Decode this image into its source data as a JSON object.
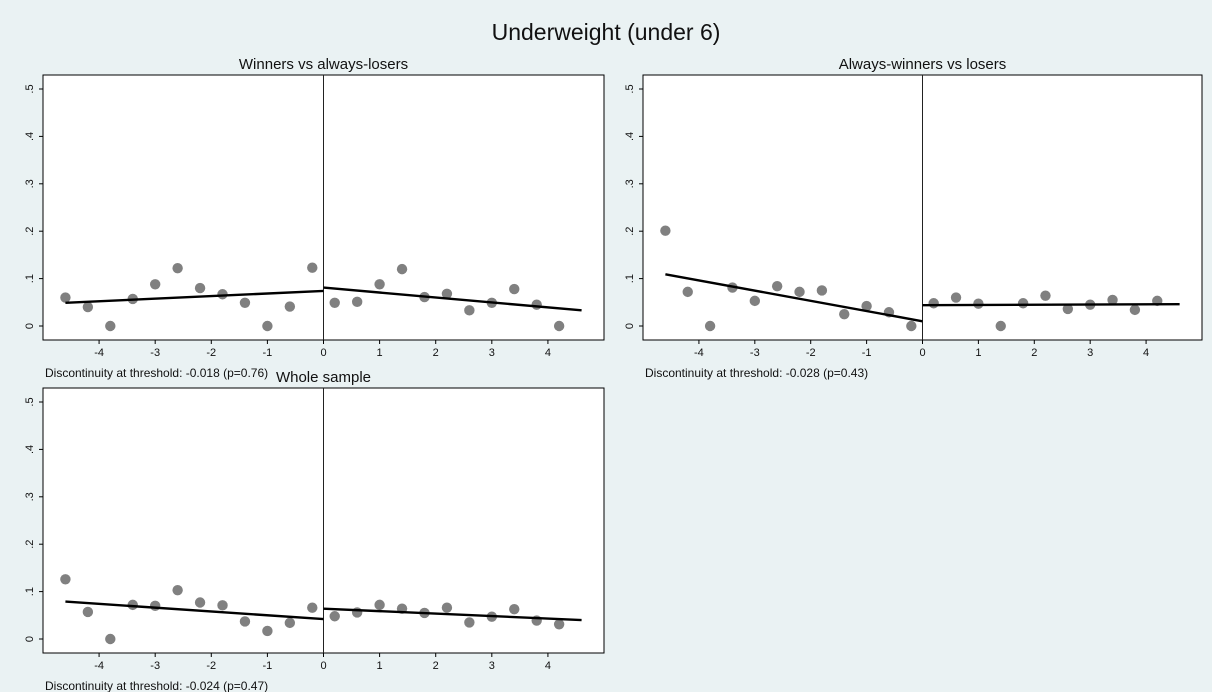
{
  "figure": {
    "title": "Underweight (under 6)"
  },
  "style": {
    "background": "#eaf2f3",
    "plot_background": "#ffffff",
    "marker_color": "#808080",
    "fit_color": "#000000",
    "threshold_color": "#222222"
  },
  "chart_data": [
    {
      "type": "scatter",
      "title": "Winners vs always-losers",
      "note": "Discontinuity at threshold: -0.018 (p=0.76)",
      "xlim": [
        -4.75,
        4.75
      ],
      "ylim": [
        0,
        0.5
      ],
      "xticks": [
        -4,
        -3,
        -2,
        -1,
        0,
        1,
        2,
        3,
        4
      ],
      "xtick_labels": [
        "-4",
        "-3",
        "-2",
        "-1",
        "0",
        "1",
        "2",
        "3",
        "4"
      ],
      "yticks": [
        0,
        0.1,
        0.2,
        0.3,
        0.4,
        0.5
      ],
      "ytick_labels": [
        "0",
        ".1",
        ".2",
        ".3",
        ".4",
        ".5"
      ],
      "threshold": 0,
      "grid": false,
      "points": [
        [
          -4.6,
          0.06
        ],
        [
          -4.2,
          0.04
        ],
        [
          -3.8,
          0.0
        ],
        [
          -3.4,
          0.057
        ],
        [
          -3.0,
          0.088
        ],
        [
          -2.6,
          0.122
        ],
        [
          -2.2,
          0.08
        ],
        [
          -1.8,
          0.067
        ],
        [
          -1.4,
          0.049
        ],
        [
          -1.0,
          0.0
        ],
        [
          -0.6,
          0.041
        ],
        [
          -0.2,
          0.123
        ],
        [
          0.2,
          0.049
        ],
        [
          0.6,
          0.051
        ],
        [
          1.0,
          0.088
        ],
        [
          1.4,
          0.12
        ],
        [
          1.8,
          0.061
        ],
        [
          2.2,
          0.068
        ],
        [
          2.6,
          0.033
        ],
        [
          3.0,
          0.049
        ],
        [
          3.4,
          0.078
        ],
        [
          3.8,
          0.045
        ],
        [
          4.2,
          0.0
        ]
      ],
      "fit": [
        {
          "from": [
            -4.6,
            0.049
          ],
          "to": [
            0.0,
            0.074
          ]
        },
        {
          "from": [
            0.0,
            0.081
          ],
          "to": [
            4.6,
            0.033
          ]
        }
      ]
    },
    {
      "type": "scatter",
      "title": "Always-winners vs losers",
      "note": "Discontinuity at threshold: -0.028 (p=0.43)",
      "xlim": [
        -4.75,
        4.75
      ],
      "ylim": [
        0,
        0.5
      ],
      "xticks": [
        -4,
        -3,
        -2,
        -1,
        0,
        1,
        2,
        3,
        4
      ],
      "xtick_labels": [
        "-4",
        "-3",
        "-2",
        "-1",
        "0",
        "1",
        "2",
        "3",
        "4"
      ],
      "yticks": [
        0,
        0.1,
        0.2,
        0.3,
        0.4,
        0.5
      ],
      "ytick_labels": [
        "0",
        ".1",
        ".2",
        ".3",
        ".4",
        ".5"
      ],
      "threshold": 0,
      "grid": false,
      "points": [
        [
          -4.6,
          0.201
        ],
        [
          -4.2,
          0.072
        ],
        [
          -3.8,
          0.0
        ],
        [
          -3.4,
          0.081
        ],
        [
          -3.0,
          0.053
        ],
        [
          -2.6,
          0.084
        ],
        [
          -2.2,
          0.072
        ],
        [
          -1.8,
          0.075
        ],
        [
          -1.4,
          0.025
        ],
        [
          -1.0,
          0.042
        ],
        [
          -0.6,
          0.029
        ],
        [
          -0.2,
          0.0
        ],
        [
          0.2,
          0.048
        ],
        [
          0.6,
          0.06
        ],
        [
          1.0,
          0.047
        ],
        [
          1.4,
          0.0
        ],
        [
          1.8,
          0.048
        ],
        [
          2.2,
          0.064
        ],
        [
          2.6,
          0.036
        ],
        [
          3.0,
          0.045
        ],
        [
          3.4,
          0.055
        ],
        [
          3.8,
          0.034
        ],
        [
          4.2,
          0.053
        ]
      ],
      "fit": [
        {
          "from": [
            -4.6,
            0.109
          ],
          "to": [
            0.0,
            0.01
          ]
        },
        {
          "from": [
            0.0,
            0.044
          ],
          "to": [
            4.6,
            0.046
          ]
        }
      ]
    },
    {
      "type": "scatter",
      "title": "Whole sample",
      "note": "Discontinuity at threshold: -0.024 (p=0.47)",
      "xlim": [
        -4.75,
        4.75
      ],
      "ylim": [
        0,
        0.5
      ],
      "xticks": [
        -4,
        -3,
        -2,
        -1,
        0,
        1,
        2,
        3,
        4
      ],
      "xtick_labels": [
        "-4",
        "-3",
        "-2",
        "-1",
        "0",
        "1",
        "2",
        "3",
        "4"
      ],
      "yticks": [
        0,
        0.1,
        0.2,
        0.3,
        0.4,
        0.5
      ],
      "ytick_labels": [
        "0",
        ".1",
        ".2",
        ".3",
        ".4",
        ".5"
      ],
      "threshold": 0,
      "grid": false,
      "points": [
        [
          -4.6,
          0.126
        ],
        [
          -4.2,
          0.057
        ],
        [
          -3.8,
          0.0
        ],
        [
          -3.4,
          0.072
        ],
        [
          -3.0,
          0.07
        ],
        [
          -2.6,
          0.103
        ],
        [
          -2.2,
          0.077
        ],
        [
          -1.8,
          0.071
        ],
        [
          -1.4,
          0.037
        ],
        [
          -1.0,
          0.017
        ],
        [
          -0.6,
          0.034
        ],
        [
          -0.2,
          0.066
        ],
        [
          0.2,
          0.048
        ],
        [
          0.6,
          0.056
        ],
        [
          1.0,
          0.072
        ],
        [
          1.4,
          0.064
        ],
        [
          1.8,
          0.055
        ],
        [
          2.2,
          0.066
        ],
        [
          2.6,
          0.035
        ],
        [
          3.0,
          0.047
        ],
        [
          3.4,
          0.063
        ],
        [
          3.8,
          0.039
        ],
        [
          4.2,
          0.031
        ]
      ],
      "fit": [
        {
          "from": [
            -4.6,
            0.079
          ],
          "to": [
            0.0,
            0.042
          ]
        },
        {
          "from": [
            0.0,
            0.064
          ],
          "to": [
            4.6,
            0.04
          ]
        }
      ]
    }
  ]
}
